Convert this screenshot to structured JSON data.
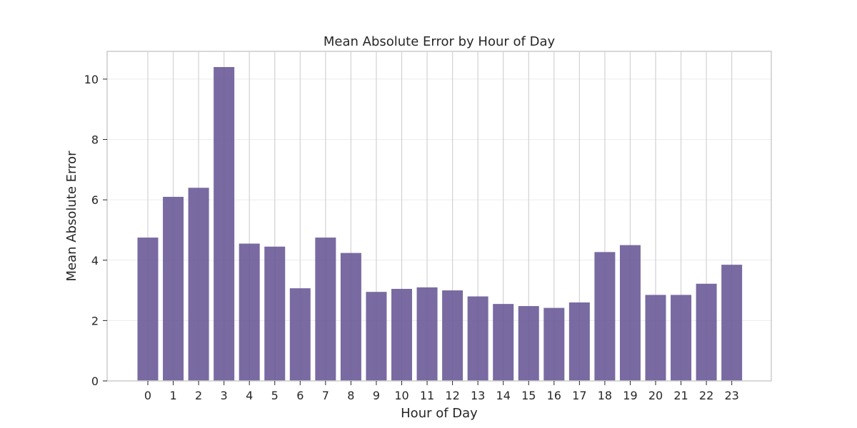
{
  "chart_data": {
    "type": "bar",
    "title": "Mean Absolute Error by Hour of Day",
    "xlabel": "Hour of Day",
    "ylabel": "Mean Absolute Error",
    "categories": [
      "0",
      "1",
      "2",
      "3",
      "4",
      "5",
      "6",
      "7",
      "8",
      "9",
      "10",
      "11",
      "12",
      "13",
      "14",
      "15",
      "16",
      "17",
      "18",
      "19",
      "20",
      "21",
      "22",
      "23"
    ],
    "values": [
      4.75,
      6.1,
      6.4,
      10.4,
      4.55,
      4.45,
      3.07,
      4.75,
      4.24,
      2.95,
      3.05,
      3.1,
      3.0,
      2.8,
      2.55,
      2.48,
      2.42,
      2.6,
      4.27,
      4.5,
      2.85,
      2.85,
      3.22,
      3.85
    ],
    "yticks": [
      "0",
      "2",
      "4",
      "6",
      "8",
      "10"
    ],
    "ylim": [
      0,
      10.92
    ],
    "grid": true,
    "colors": {
      "bar": "#6a5a98",
      "grid": "#d2d2d2",
      "axes": "#cccccc",
      "text": "#262626"
    }
  }
}
